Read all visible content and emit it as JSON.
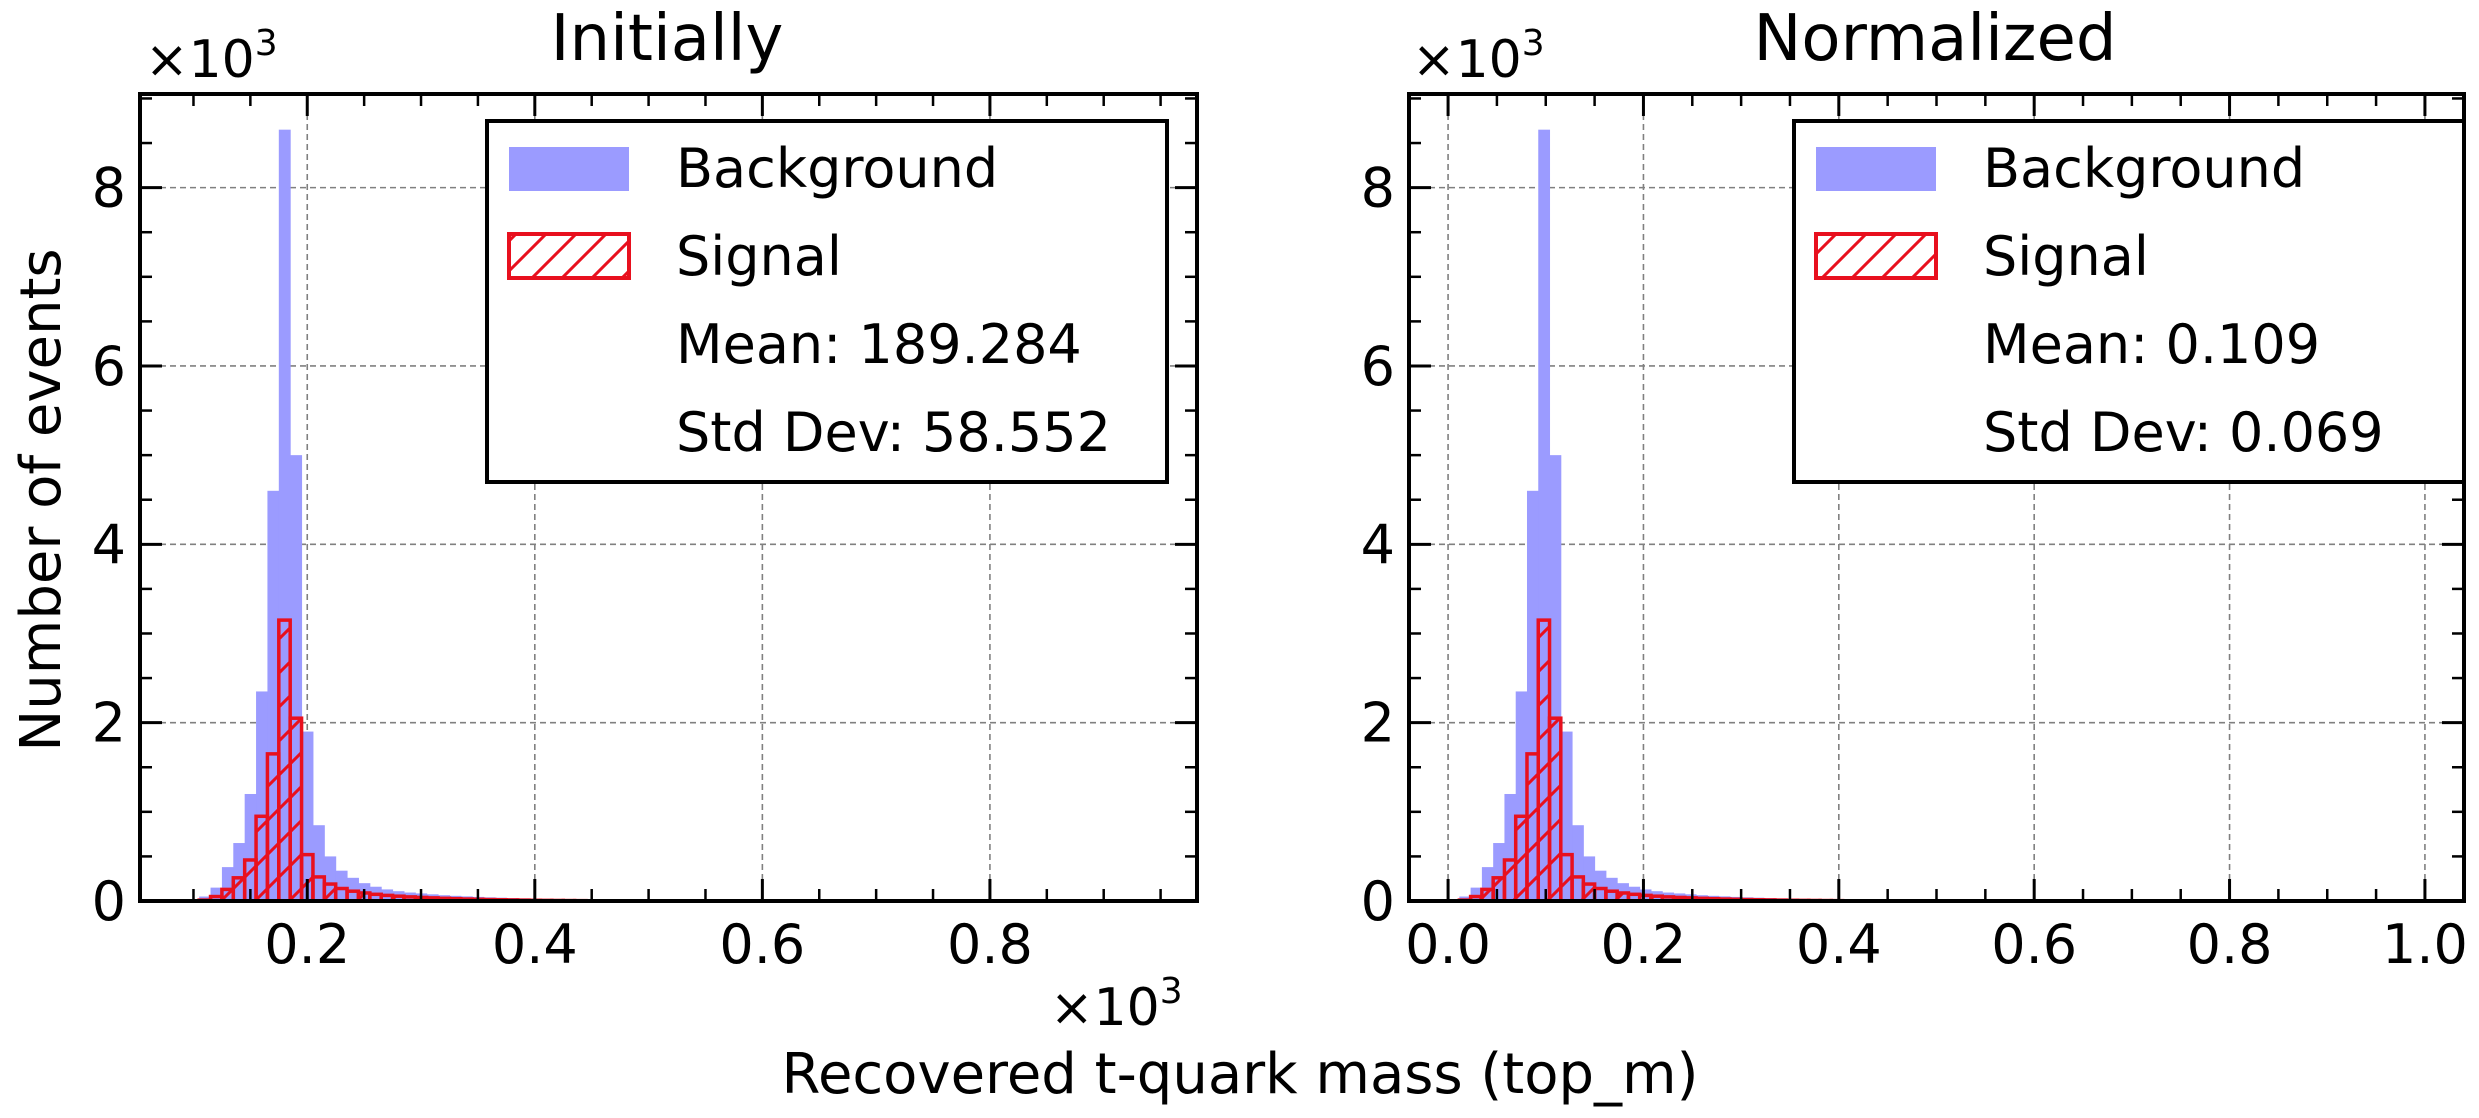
{
  "figure": {
    "shared_xlabel": "Recovered t-quark mass (top_m)",
    "shared_ylabel": "Number of events",
    "x_multiplier_base": "×10",
    "x_multiplier_exp": "3"
  },
  "colors": {
    "background_fill": "#9b9bff",
    "signal_edge": "#e8101e",
    "grid": "#808080",
    "legend_border": "#000000"
  },
  "chart_data": [
    {
      "type": "bar",
      "title": "Initially",
      "xlabel": "Recovered t-quark mass (top_m)",
      "ylabel": "Number of events",
      "y_multiplier_base": "×10",
      "y_multiplier_exp": "3",
      "xlim": [
        0.053,
        0.982
      ],
      "ylim": [
        0,
        9.05
      ],
      "x_ticks": [
        0.2,
        0.4,
        0.6,
        0.8
      ],
      "x_tick_labels": [
        "0.2",
        "0.4",
        "0.6",
        "0.8"
      ],
      "x_minor_step": 0.05,
      "y_ticks": [
        0,
        2,
        4,
        6,
        8
      ],
      "y_tick_labels": [
        "0",
        "2",
        "4",
        "6",
        "8"
      ],
      "y_minor_step": 0.5,
      "grid": true,
      "legend_position": "top-right",
      "legend": {
        "entries": [
          "Background",
          "Signal"
        ],
        "stats": [
          "Mean: 189.284",
          "Std Dev: 58.552"
        ]
      },
      "bins": {
        "start": 0.095,
        "width": 0.01,
        "background": [
          0.02,
          0.05,
          0.15,
          0.38,
          0.65,
          1.2,
          2.35,
          4.6,
          8.65,
          5.0,
          1.9,
          0.85,
          0.5,
          0.34,
          0.26,
          0.2,
          0.16,
          0.13,
          0.11,
          0.095,
          0.085,
          0.075,
          0.065,
          0.058,
          0.052,
          0.046,
          0.041,
          0.037,
          0.033,
          0.029,
          0.026,
          0.023,
          0.021,
          0.019,
          0.017,
          0.015,
          0.013,
          0.012,
          0.011,
          0.01,
          0.009,
          0.008,
          0.007,
          0.006,
          0.005
        ],
        "signal": [
          0.0,
          0.01,
          0.05,
          0.13,
          0.26,
          0.46,
          0.95,
          1.65,
          3.15,
          2.05,
          0.52,
          0.27,
          0.19,
          0.14,
          0.11,
          0.09,
          0.075,
          0.063,
          0.054,
          0.046,
          0.04,
          0.035,
          0.03,
          0.026,
          0.022,
          0.019,
          0.016,
          0.014,
          0.012,
          0.01,
          0.008,
          0.007,
          0.006,
          0.005,
          0.004
        ]
      }
    },
    {
      "type": "bar",
      "title": "Normalized",
      "xlabel": "Recovered t-quark mass (top_m)",
      "ylabel": "Number of events",
      "y_multiplier_base": "×10",
      "y_multiplier_exp": "3",
      "xlim": [
        -0.04,
        1.04
      ],
      "ylim": [
        0,
        9.05
      ],
      "x_ticks": [
        0.0,
        0.2,
        0.4,
        0.6,
        0.8,
        1.0
      ],
      "x_tick_labels": [
        "0.0",
        "0.2",
        "0.4",
        "0.6",
        "0.8",
        "1.0"
      ],
      "x_minor_step": 0.05,
      "y_ticks": [
        0,
        2,
        4,
        6,
        8
      ],
      "y_tick_labels": [
        "0",
        "2",
        "4",
        "6",
        "8"
      ],
      "y_minor_step": 0.5,
      "grid": true,
      "legend_position": "top-right",
      "legend": {
        "entries": [
          "Background",
          "Signal"
        ],
        "stats": [
          "Mean: 0.109",
          "Std Dev: 0.069"
        ]
      },
      "bins": {
        "start": 0.0,
        "width": 0.01154,
        "background": [
          0.02,
          0.05,
          0.15,
          0.38,
          0.65,
          1.2,
          2.35,
          4.6,
          8.65,
          5.0,
          1.9,
          0.85,
          0.5,
          0.34,
          0.26,
          0.2,
          0.16,
          0.13,
          0.11,
          0.095,
          0.085,
          0.075,
          0.065,
          0.058,
          0.052,
          0.046,
          0.041,
          0.037,
          0.033,
          0.029,
          0.026,
          0.023,
          0.021,
          0.019,
          0.017,
          0.015,
          0.013,
          0.012,
          0.011,
          0.01,
          0.009,
          0.008,
          0.007,
          0.006,
          0.005
        ],
        "signal": [
          0.0,
          0.01,
          0.05,
          0.13,
          0.26,
          0.46,
          0.95,
          1.65,
          3.15,
          2.05,
          0.52,
          0.27,
          0.19,
          0.14,
          0.11,
          0.09,
          0.075,
          0.063,
          0.054,
          0.046,
          0.04,
          0.035,
          0.03,
          0.026,
          0.022,
          0.019,
          0.016,
          0.014,
          0.012,
          0.01,
          0.008,
          0.007,
          0.006,
          0.005,
          0.004
        ]
      }
    }
  ]
}
